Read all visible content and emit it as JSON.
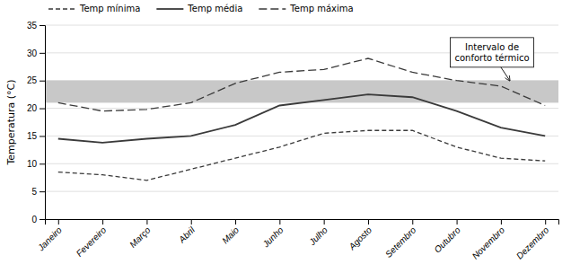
{
  "chart_data": {
    "type": "line",
    "categories": [
      "Janeiro",
      "Fevereiro",
      "Março",
      "Abril",
      "Maio",
      "Junho",
      "Julho",
      "Agosto",
      "Setembro",
      "Outubro",
      "Novembro",
      "Dezembro"
    ],
    "series": [
      {
        "name": "Temp mínima",
        "color": "#3a3a3a",
        "line_style": "dashed",
        "values": [
          8.5,
          8.0,
          7.0,
          9.0,
          11.0,
          13.0,
          15.5,
          16.0,
          16.0,
          13.0,
          11.0,
          10.5
        ]
      },
      {
        "name": "Temp média",
        "color": "#3a3a3a",
        "line_style": "solid",
        "values": [
          14.5,
          13.8,
          14.5,
          15.0,
          17.0,
          20.5,
          21.5,
          22.5,
          22.0,
          19.5,
          16.5,
          15.0
        ]
      },
      {
        "name": "Temp máxima",
        "color": "#3a3a3a",
        "line_style": "longdash",
        "values": [
          21.0,
          19.5,
          19.8,
          21.0,
          24.5,
          26.5,
          27.0,
          29.0,
          26.5,
          25.0,
          24.0,
          20.5
        ]
      }
    ],
    "bands": [
      {
        "from": 21.0,
        "to": 25.0,
        "color": "#c8c8c8"
      }
    ],
    "annotations": [
      "Intervalo de\nconforto térmico"
    ],
    "ylabel": "Temperatura (°C)",
    "ylim": [
      0,
      35
    ],
    "yticks": [
      0,
      5,
      10,
      15,
      20,
      25,
      30,
      35
    ],
    "grid": true,
    "legend": "top-left"
  }
}
